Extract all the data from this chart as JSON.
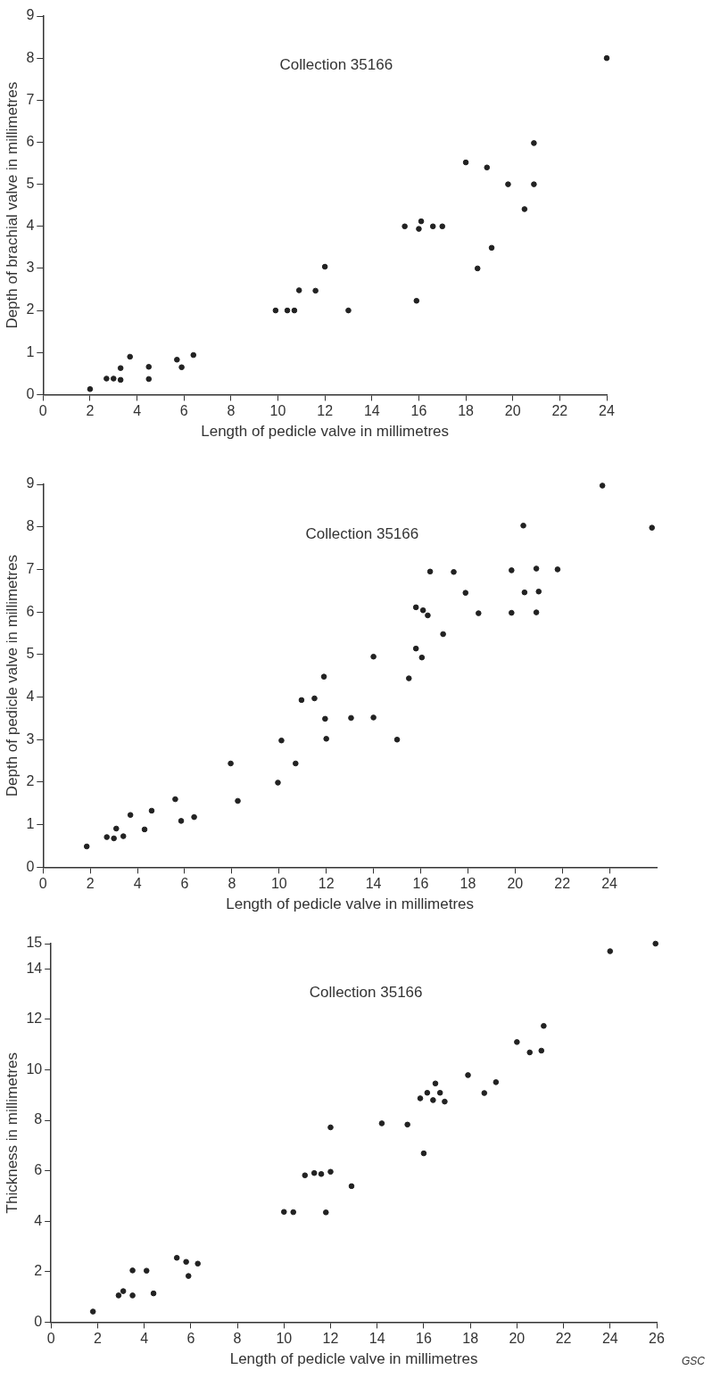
{
  "chart_data": [
    {
      "type": "scatter",
      "xlabel": "Length of pedicle valve in millimetres",
      "ylabel": "Depth of brachial valve in millimetres",
      "annotations": [
        "Collection 35166"
      ],
      "marker": "circle",
      "color": "#222222",
      "xlim": [
        0,
        24
      ],
      "ylim": [
        0,
        9
      ],
      "xticks": [
        0,
        2,
        4,
        6,
        8,
        10,
        12,
        14,
        16,
        18,
        20,
        22,
        24
      ],
      "yticks": [
        0,
        1,
        2,
        3,
        4,
        5,
        6,
        7,
        8,
        9
      ],
      "x": [
        2.0,
        2.7,
        3.0,
        3.3,
        3.3,
        3.7,
        4.5,
        4.5,
        5.7,
        5.9,
        6.4,
        9.9,
        10.4,
        10.7,
        10.9,
        11.6,
        12.0,
        13.0,
        15.4,
        16.0,
        16.1,
        15.9,
        16.6,
        17.0,
        18.0,
        18.5,
        18.9,
        19.1,
        19.8,
        20.5,
        20.9,
        20.9,
        24.0
      ],
      "values": [
        0.13,
        0.38,
        0.38,
        0.35,
        0.63,
        0.9,
        0.37,
        0.66,
        0.83,
        0.65,
        0.94,
        2.0,
        2.0,
        2.0,
        2.48,
        2.47,
        3.04,
        2.0,
        4.0,
        3.94,
        4.12,
        2.23,
        4.0,
        4.0,
        5.52,
        3.0,
        5.4,
        3.49,
        5.0,
        4.41,
        5.98,
        5.0,
        8.0
      ]
    },
    {
      "type": "scatter",
      "xlabel": "Length of pedicle valve in millimetres",
      "ylabel": "Depth of pedicle valve in millimetres",
      "annotations": [
        "Collection 35166"
      ],
      "marker": "circle",
      "color": "#222222",
      "xlim": [
        0,
        26
      ],
      "ylim": [
        0,
        9
      ],
      "xticks": [
        0,
        2,
        4,
        6,
        8,
        10,
        12,
        14,
        16,
        18,
        20,
        22,
        24
      ],
      "yticks": [
        0,
        1,
        2,
        3,
        4,
        5,
        6,
        7,
        8,
        9
      ],
      "x": [
        1.85,
        2.7,
        3.0,
        3.1,
        3.4,
        3.7,
        4.3,
        4.6,
        5.6,
        5.85,
        6.4,
        7.95,
        8.25,
        9.95,
        10.1,
        10.7,
        10.95,
        11.5,
        11.9,
        11.95,
        12.0,
        13.05,
        14.0,
        14.0,
        15.0,
        15.5,
        15.8,
        15.8,
        16.05,
        16.1,
        16.3,
        16.4,
        16.95,
        17.4,
        17.9,
        18.45,
        19.85,
        19.85,
        20.35,
        20.4,
        20.9,
        20.9,
        21.0,
        21.8,
        23.7,
        25.8
      ],
      "values": [
        0.49,
        0.71,
        0.68,
        0.91,
        0.73,
        1.23,
        0.89,
        1.33,
        1.6,
        1.09,
        1.18,
        2.44,
        1.56,
        1.99,
        2.98,
        2.44,
        3.93,
        3.97,
        4.48,
        3.49,
        3.02,
        3.51,
        4.95,
        3.52,
        3.0,
        4.44,
        6.11,
        5.14,
        4.93,
        6.04,
        5.92,
        6.95,
        5.48,
        6.94,
        6.45,
        5.97,
        6.98,
        5.98,
        8.03,
        6.46,
        7.02,
        5.99,
        6.48,
        7.0,
        8.97,
        7.98
      ]
    },
    {
      "type": "scatter",
      "xlabel": "Length of pedicle valve in millimetres",
      "ylabel": "Thickness in millimetres",
      "annotations": [
        "Collection 35166",
        "GSC"
      ],
      "marker": "circle",
      "color": "#222222",
      "xlim": [
        0,
        26
      ],
      "ylim": [
        0,
        15
      ],
      "xticks": [
        0,
        2,
        4,
        6,
        8,
        10,
        12,
        14,
        16,
        18,
        20,
        22,
        24,
        26
      ],
      "yticks": [
        0,
        2,
        4,
        6,
        8,
        10,
        12,
        14,
        15
      ],
      "x": [
        1.8,
        2.9,
        3.1,
        3.5,
        3.5,
        4.1,
        4.4,
        5.4,
        5.8,
        5.9,
        6.3,
        10.0,
        10.4,
        10.9,
        11.3,
        11.6,
        11.8,
        12.0,
        12.0,
        12.9,
        14.2,
        15.3,
        16.0,
        15.85,
        16.15,
        16.4,
        16.5,
        16.7,
        16.9,
        17.9,
        18.6,
        19.1,
        20.0,
        20.55,
        21.05,
        21.15,
        24.0,
        25.95
      ],
      "values": [
        0.42,
        1.06,
        1.23,
        2.05,
        1.06,
        2.04,
        1.14,
        2.55,
        2.39,
        1.83,
        2.32,
        4.37,
        4.36,
        5.82,
        5.91,
        5.87,
        4.35,
        7.72,
        5.96,
        5.39,
        7.88,
        7.83,
        6.69,
        8.87,
        9.09,
        8.8,
        9.46,
        9.09,
        8.74,
        9.79,
        9.08,
        9.51,
        11.1,
        10.69,
        10.76,
        11.74,
        14.7,
        15.0
      ]
    }
  ]
}
